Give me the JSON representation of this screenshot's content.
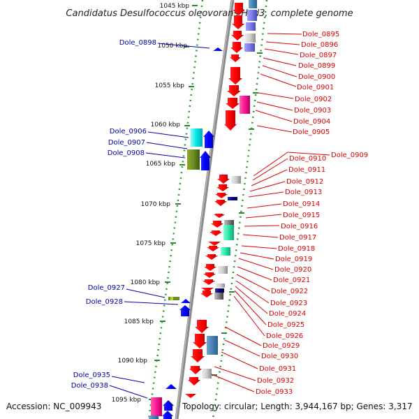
{
  "title": "Candidatus Desulfococcus oleovorans Hxd3, complete genome",
  "footer": {
    "accession": "Accession: NC_009943",
    "summary": "Topology: circular; Length: 3,944,167 bp; Genes: 3,317"
  },
  "colors": {
    "forward_label": "#0000aa",
    "reverse_label": "#dd0000",
    "backbone": "#7a7a7a",
    "dotted_guide": "#2a9a2a"
  },
  "ticks": [
    "1045 kbp",
    "1050 kbp",
    "1055 kbp",
    "1060 kbp",
    "1065 kbp",
    "1070 kbp",
    "1075 kbp",
    "1080 kbp",
    "1085 kbp",
    "1090 kbp",
    "1095 kbp"
  ],
  "forward_labels": [
    "Dole_0898",
    "Dole_0906",
    "Dole_0907",
    "Dole_0908",
    "Dole_0927",
    "Dole_0928",
    "Dole_0935",
    "Dole_0938"
  ],
  "reverse_labels": [
    "Dole_0895",
    "Dole_0896",
    "Dole_0897",
    "Dole_0899",
    "Dole_0900",
    "Dole_0901",
    "Dole_0902",
    "Dole_0903",
    "Dole_0904",
    "Dole_0905",
    "Dole_0909",
    "Dole_0910",
    "Dole_0911",
    "Dole_0912",
    "Dole_0913",
    "Dole_0914",
    "Dole_0915",
    "Dole_0916",
    "Dole_0917",
    "Dole_0918",
    "Dole_0919",
    "Dole_0920",
    "Dole_0921",
    "Dole_0922",
    "Dole_0923",
    "Dole_0924",
    "Dole_0925",
    "Dole_0926",
    "Dole_0929",
    "Dole_0930",
    "Dole_0931",
    "Dole_0932",
    "Dole_0933"
  ]
}
